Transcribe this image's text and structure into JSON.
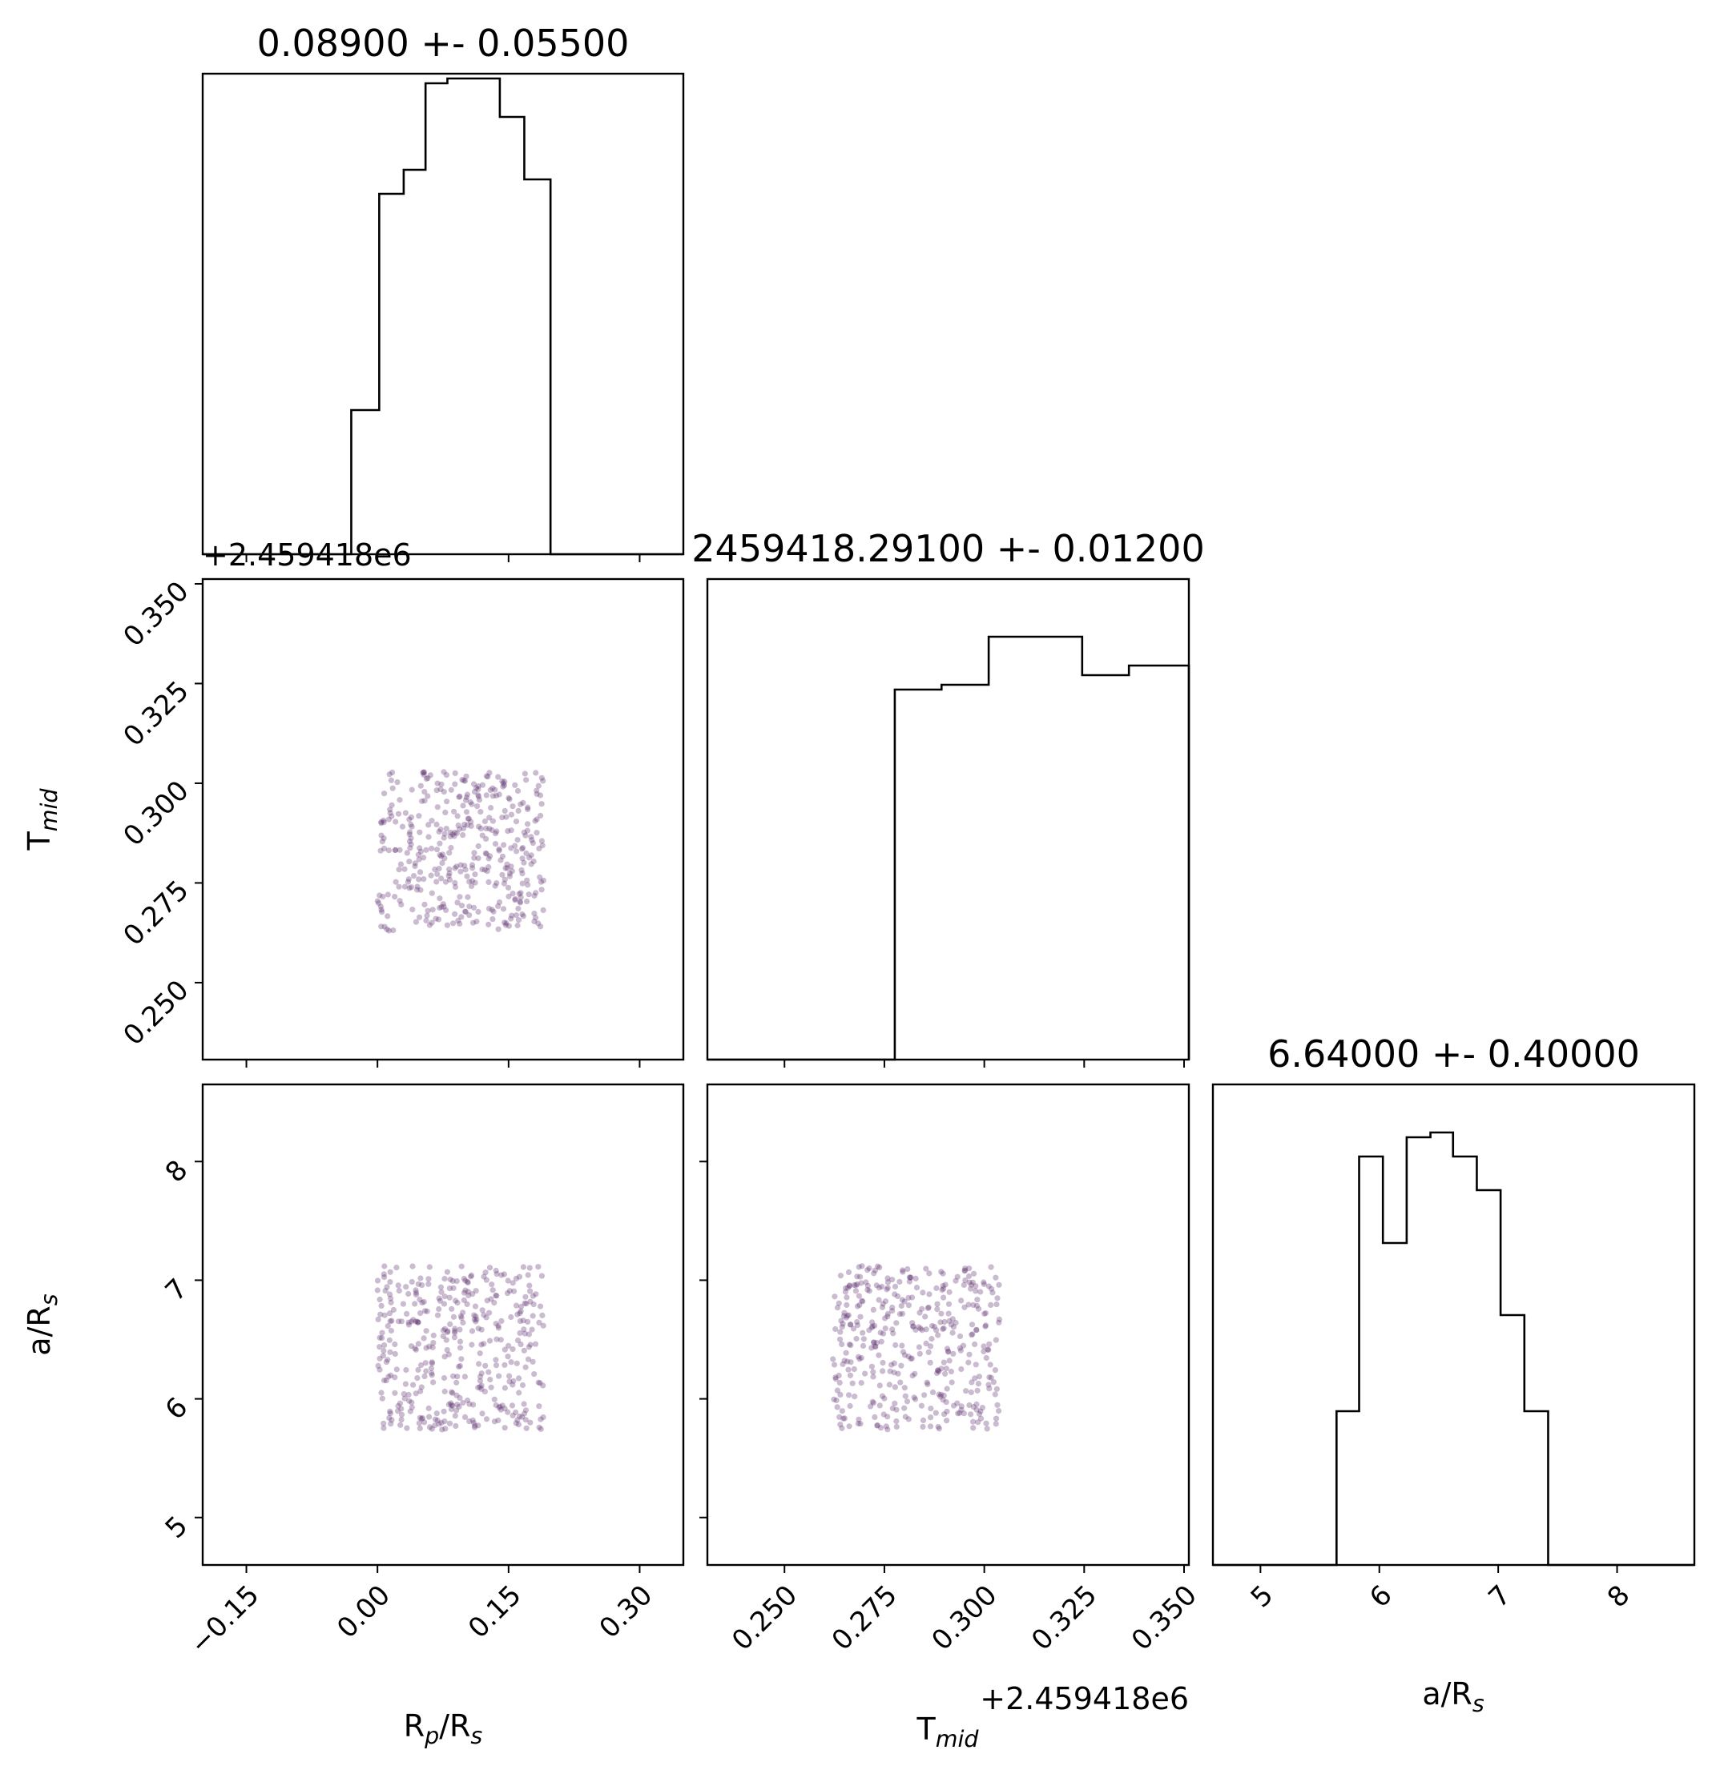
{
  "chart_data": {
    "type": "corner",
    "panels": [
      {
        "id": "hist-rp",
        "type": "step-histogram",
        "title": "0.08900 +- 0.05500",
        "xlim": [
          -0.2,
          0.35
        ],
        "bins": [
          -0.16,
          -0.128,
          -0.095,
          -0.063,
          -0.03,
          0.002,
          0.03,
          0.055,
          0.08,
          0.11,
          0.14,
          0.168,
          0.198,
          0.23,
          0.262,
          0.295,
          0.32,
          0.35
        ],
        "counts": [
          0,
          0,
          0,
          0,
          0.3,
          0.75,
          0.8,
          0.98,
          0.99,
          0.99,
          0.91,
          0.78,
          0,
          0,
          0,
          0,
          0
        ],
        "xticks": [
          -0.15,
          0.0,
          0.15,
          0.3
        ],
        "xtick_labels": [
          "−0.15",
          "0.00",
          "0.15",
          "0.30"
        ],
        "xlabel": "R_p/R_s"
      },
      {
        "id": "hist-tmid",
        "type": "step-histogram",
        "title": "2459418.29100 +- 0.01200",
        "offset_label": "+2.459418e6",
        "xlim": [
          0.2307,
          0.3512
        ],
        "bins": [
          0.2307,
          0.2424,
          0.2542,
          0.2659,
          0.2776,
          0.2893,
          0.3011,
          0.3128,
          0.3245,
          0.3362,
          0.3512
        ],
        "counts": [
          0,
          0,
          0,
          0.0,
          0.77,
          0.78,
          0.88,
          0.88,
          0.8,
          0.82
        ],
        "xticks": [
          0.25,
          0.275,
          0.3,
          0.325,
          0.35
        ],
        "xtick_labels": [
          "0.250",
          "0.275",
          "0.300",
          "0.325",
          "0.350"
        ],
        "xlabel": "T_mid"
      },
      {
        "id": "hist-ars",
        "type": "step-histogram",
        "title": "6.64000 +- 0.40000",
        "xlim": [
          4.6,
          8.65
        ],
        "bins": [
          4.6,
          5.05,
          5.44,
          5.64,
          5.83,
          6.03,
          6.23,
          6.43,
          6.62,
          6.82,
          7.02,
          7.22,
          7.42,
          8.65
        ],
        "counts": [
          0,
          0,
          0,
          0.32,
          0.85,
          0.67,
          0.89,
          0.9,
          0.85,
          0.78,
          0.52,
          0.32,
          0
        ],
        "xticks": [
          5,
          6,
          7,
          8
        ],
        "xtick_labels": [
          "5",
          "6",
          "7",
          "8"
        ],
        "xlabel": "a/R_s"
      }
    ],
    "scatter_panels": [
      {
        "id": "scatter-rp-tmid",
        "x": "R_p/R_s",
        "y": "T_mid",
        "x_range": [
          0.0,
          0.19
        ],
        "y_range": [
          0.263,
          0.303
        ],
        "n_points": 400,
        "color": "#5b2a6e"
      },
      {
        "id": "scatter-rp-ars",
        "x": "R_p/R_s",
        "y": "a/R_s",
        "x_range": [
          0.0,
          0.19
        ],
        "y_range": [
          5.74,
          7.12
        ],
        "n_points": 400,
        "color": "#5b2a6e"
      },
      {
        "id": "scatter-tmid-ars",
        "x": "T_mid",
        "y": "a/R_s",
        "x_range": [
          0.262,
          0.304
        ],
        "y_range": [
          5.74,
          7.12
        ],
        "n_points": 400,
        "color": "#5b2a6e"
      }
    ],
    "axes": {
      "rp": {
        "label": "R_p/R_s",
        "lim": [
          -0.2,
          0.35
        ],
        "ticks": [
          -0.15,
          0.0,
          0.15,
          0.3
        ],
        "tick_labels": [
          "−0.15",
          "0.00",
          "0.15",
          "0.30"
        ]
      },
      "tmid": {
        "label": "T_mid",
        "offset": "+2.459418e6",
        "lim": [
          0.2307,
          0.3512
        ],
        "ticks": [
          0.25,
          0.275,
          0.3,
          0.325,
          0.35
        ],
        "tick_labels": [
          "0.250",
          "0.275",
          "0.300",
          "0.325",
          "0.350"
        ]
      },
      "ars": {
        "label": "a/R_s",
        "lim": [
          4.6,
          8.65
        ],
        "ticks": [
          5,
          6,
          7,
          8
        ],
        "tick_labels": [
          "5",
          "6",
          "7",
          "8"
        ]
      }
    },
    "grid": false,
    "legend": "none"
  }
}
